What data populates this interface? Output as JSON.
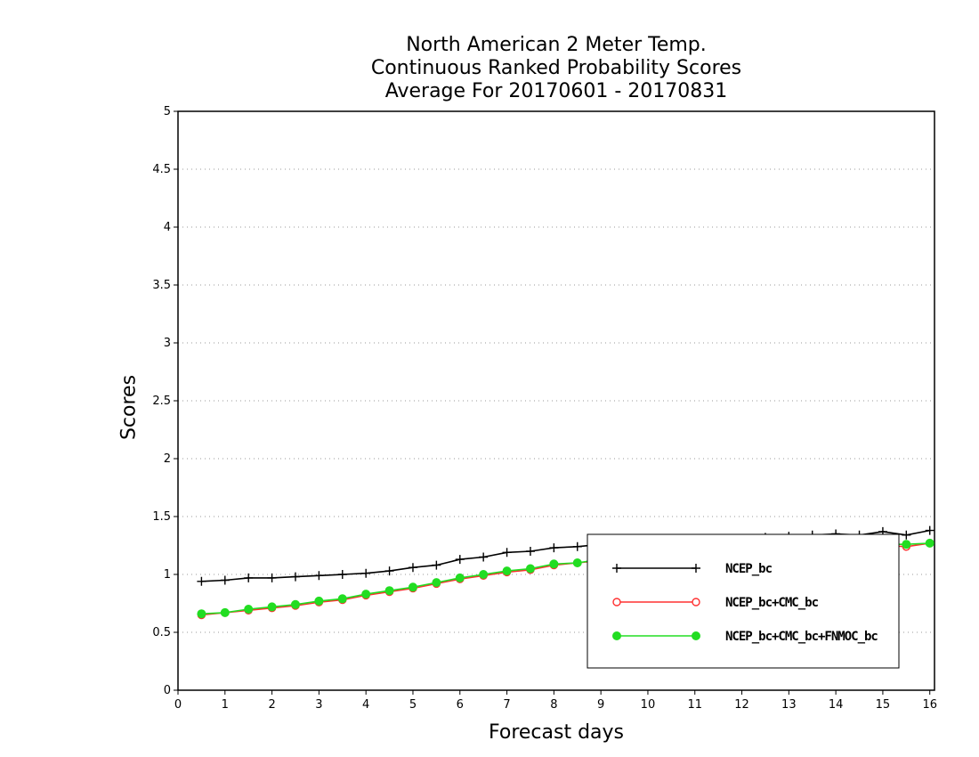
{
  "chart_data": {
    "type": "line",
    "title_lines": [
      "North American 2 Meter Temp.",
      "Continuous Ranked Probability Scores",
      "Average For 20170601 - 20170831"
    ],
    "xlabel": "Forecast days",
    "ylabel": "Scores",
    "xlim": [
      0,
      16.1
    ],
    "ylim": [
      0,
      5
    ],
    "x_ticks": [
      0,
      1,
      2,
      3,
      4,
      5,
      6,
      7,
      8,
      9,
      10,
      11,
      12,
      13,
      14,
      15,
      16
    ],
    "y_ticks": [
      0,
      0.5,
      1,
      1.5,
      2,
      2.5,
      3,
      3.5,
      4,
      4.5,
      5
    ],
    "y_tick_labels": [
      "0",
      "0.5",
      "1",
      "1.5",
      "2",
      "2.5",
      "3",
      "3.5",
      "4",
      "4.5",
      "5"
    ],
    "grid": "horizontal dotted",
    "legend_position": "bottom-right",
    "x": [
      0.5,
      1,
      1.5,
      2,
      2.5,
      3,
      3.5,
      4,
      4.5,
      5,
      5.5,
      6,
      6.5,
      7,
      7.5,
      8,
      8.5,
      9,
      9.5,
      10,
      10.5,
      11,
      11.5,
      12,
      12.5,
      13,
      13.5,
      14,
      14.5,
      15,
      15.5,
      16
    ],
    "series": [
      {
        "name": "NCEP_bc",
        "color": "#000000",
        "marker": "plus",
        "values": [
          0.94,
          0.95,
          0.97,
          0.97,
          0.98,
          0.99,
          1.0,
          1.01,
          1.03,
          1.06,
          1.08,
          1.13,
          1.15,
          1.19,
          1.2,
          1.23,
          1.24,
          1.26,
          1.27,
          1.28,
          1.29,
          1.3,
          1.31,
          1.31,
          1.32,
          1.33,
          1.34,
          1.35,
          1.34,
          1.37,
          1.34,
          1.38
        ]
      },
      {
        "name": "NCEP_bc+CMC_bc",
        "color": "#ff3030",
        "marker": "open-circle",
        "values": [
          0.65,
          0.67,
          0.69,
          0.71,
          0.73,
          0.76,
          0.78,
          0.82,
          0.85,
          0.88,
          0.92,
          0.96,
          0.99,
          1.02,
          1.04,
          1.08,
          1.1,
          1.12,
          1.14,
          1.16,
          1.17,
          1.18,
          1.19,
          1.2,
          1.21,
          1.22,
          1.22,
          1.23,
          1.24,
          1.25,
          1.24,
          1.27
        ]
      },
      {
        "name": "NCEP_bc+CMC_bc+FNMOC_bc",
        "color": "#22dd22",
        "marker": "filled-circle",
        "values": [
          0.66,
          0.67,
          0.7,
          0.72,
          0.74,
          0.77,
          0.79,
          0.83,
          0.86,
          0.89,
          0.93,
          0.97,
          1.0,
          1.03,
          1.05,
          1.09,
          1.1,
          1.13,
          1.15,
          1.17,
          1.18,
          1.19,
          1.2,
          1.21,
          1.22,
          1.23,
          1.23,
          1.24,
          1.25,
          1.26,
          1.26,
          1.27
        ]
      }
    ]
  }
}
